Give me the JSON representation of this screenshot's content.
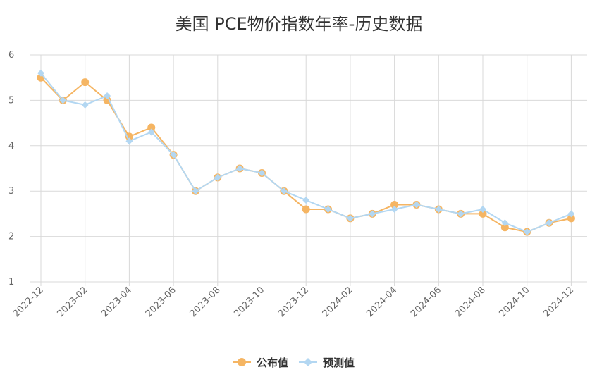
{
  "chart_data": {
    "type": "line",
    "title": "美国 PCE物价指数年率-历史数据",
    "x": [
      "2022-12",
      "2023-01",
      "2023-02",
      "2023-03",
      "2023-04",
      "2023-05",
      "2023-06",
      "2023-07",
      "2023-08",
      "2023-09",
      "2023-10",
      "2023-11",
      "2023-12",
      "2024-01",
      "2024-02",
      "2024-03",
      "2024-04",
      "2024-05",
      "2024-06",
      "2024-07",
      "2024-08",
      "2024-09",
      "2024-10",
      "2024-11",
      "2024-12"
    ],
    "x_tick_labels": [
      "2022-12",
      "2023-02",
      "2023-04",
      "2023-06",
      "2023-08",
      "2023-10",
      "2023-12",
      "2024-02",
      "2024-04",
      "2024-06",
      "2024-08",
      "2024-10",
      "2024-12"
    ],
    "y_ticks": [
      1,
      2,
      3,
      4,
      5,
      6
    ],
    "ylim": [
      1,
      6
    ],
    "grid": true,
    "legend_position": "bottom-center",
    "series": [
      {
        "name": "公布值",
        "color": "#f5b563",
        "marker": "circle",
        "values": [
          5.5,
          5.0,
          5.4,
          5.0,
          4.2,
          4.4,
          3.8,
          3.0,
          3.3,
          3.5,
          3.4,
          3.0,
          2.6,
          2.6,
          2.4,
          2.5,
          2.7,
          2.7,
          2.6,
          2.5,
          2.5,
          2.2,
          2.1,
          2.3,
          2.4
        ]
      },
      {
        "name": "预测值",
        "color": "#b3d7f2",
        "marker": "diamond",
        "values": [
          5.6,
          5.0,
          4.9,
          5.1,
          4.1,
          4.3,
          3.8,
          3.0,
          3.3,
          3.5,
          3.4,
          3.0,
          2.8,
          2.6,
          2.4,
          2.5,
          2.6,
          2.7,
          2.6,
          2.5,
          2.6,
          2.3,
          2.1,
          2.3,
          2.5
        ]
      }
    ]
  }
}
